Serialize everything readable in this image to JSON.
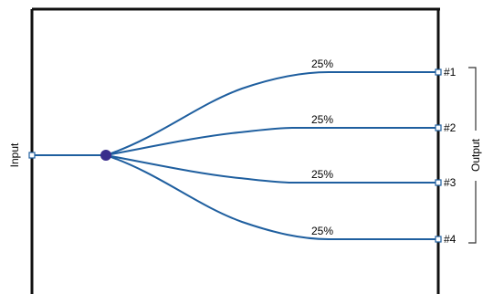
{
  "input_label": "Input",
  "output_label": "Output",
  "outputs": [
    {
      "label": "#1",
      "percent": "25%"
    },
    {
      "label": "#2",
      "percent": "25%"
    },
    {
      "label": "#3",
      "percent": "25%"
    },
    {
      "label": "#4",
      "percent": "25%"
    }
  ],
  "colors": {
    "line": "#1f5f9f",
    "node": "#3a2d8c",
    "box": "#111111"
  }
}
